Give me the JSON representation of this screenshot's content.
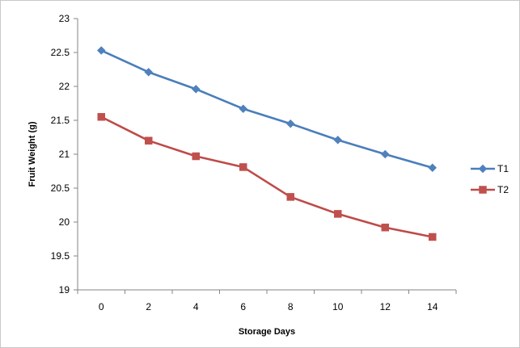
{
  "chart_data": {
    "type": "line",
    "title": "",
    "xlabel": "Storage Days",
    "ylabel": "Fruit Weight (g)",
    "x": [
      0,
      2,
      4,
      6,
      8,
      10,
      12,
      14
    ],
    "ylim": [
      19,
      23
    ],
    "yticks": [
      "19",
      "19.5",
      "20",
      "20.5",
      "21",
      "21.5",
      "22",
      "22.5",
      "23"
    ],
    "xticks": [
      "0",
      "2",
      "4",
      "6",
      "8",
      "10",
      "12",
      "14"
    ],
    "grid": false,
    "legend_position": "right",
    "series": [
      {
        "name": "T1",
        "marker": "diamond",
        "color": "#4a7ebb",
        "marker_color": "#4f81bd",
        "values": [
          22.53,
          22.21,
          21.96,
          21.67,
          21.45,
          21.21,
          21.0,
          20.8
        ]
      },
      {
        "name": "T2",
        "marker": "square",
        "color": "#be4b48",
        "marker_color": "#c0504d",
        "values": [
          21.55,
          21.2,
          20.97,
          20.81,
          20.37,
          20.12,
          19.92,
          19.78
        ]
      }
    ]
  }
}
